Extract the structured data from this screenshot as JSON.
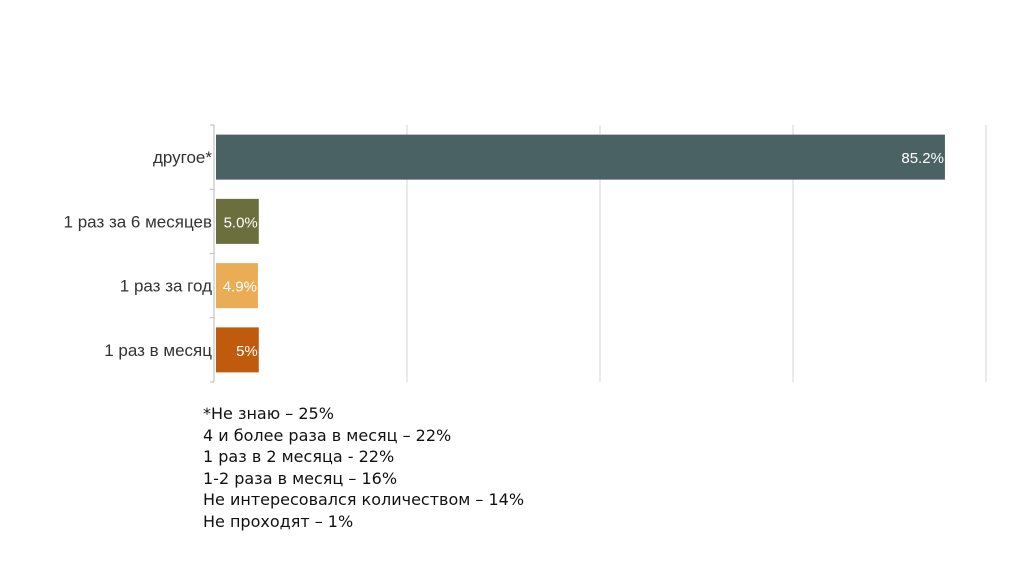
{
  "chart_data": {
    "type": "bar",
    "orientation": "horizontal",
    "categories": [
      "другое*",
      "1 раз за 6 месяцев",
      "1 раз за год",
      "1 раз в месяц"
    ],
    "values": [
      85.2,
      5.0,
      4.9,
      5
    ],
    "value_labels": [
      "85.2%",
      "5.0%",
      "4.9%",
      "5%"
    ],
    "colors": [
      "#4b6264",
      "#6b6e3d",
      "#eaac55",
      "#c05b0e"
    ],
    "xlim": [
      0,
      90
    ],
    "grid": true,
    "legend": "none"
  },
  "footnotes": [
    "*Не знаю – 25%",
    "4 и более раза в месяц – 22%",
    "1 раз в 2 месяца - 22%",
    "1-2 раза в месяц – 16%",
    "Не интересовался количеством – 14%",
    "Не проходят – 1%"
  ]
}
